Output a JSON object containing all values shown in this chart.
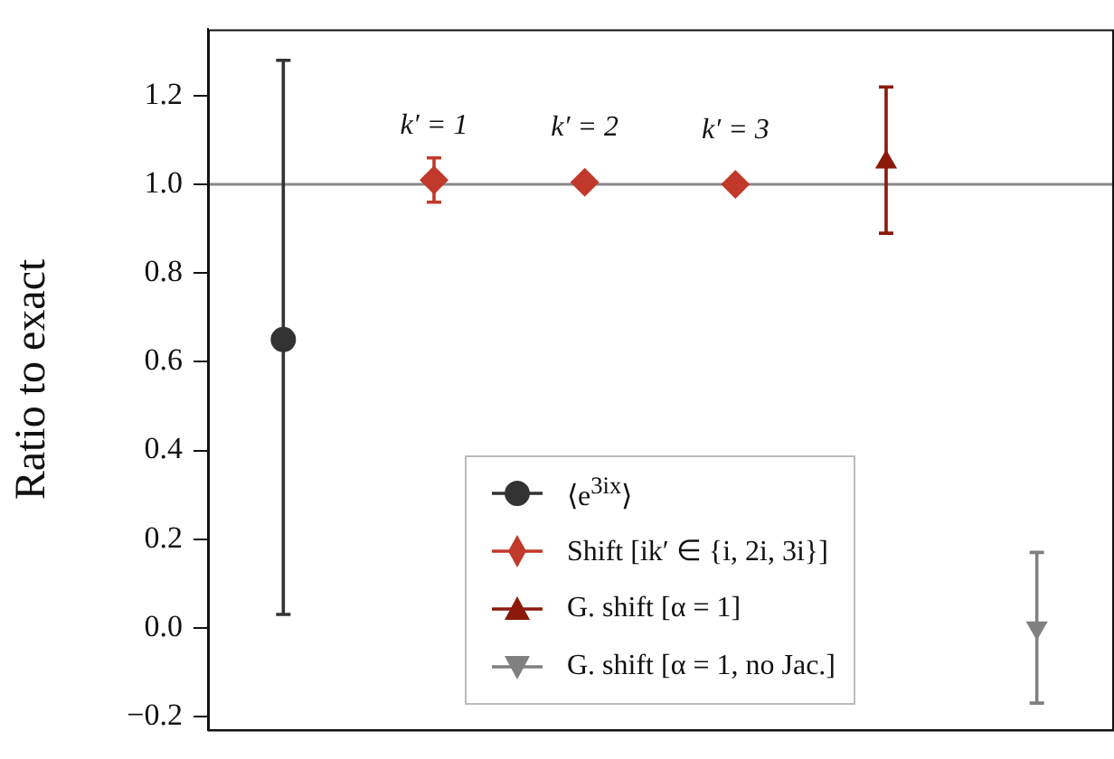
{
  "chart_data": {
    "type": "scatter",
    "ylabel": "Ratio to exact",
    "categories": [
      null,
      null,
      null,
      null,
      null,
      null
    ],
    "ylim": [
      -0.23,
      1.35
    ],
    "yticks": [
      {
        "value": -0.2,
        "label": "−0.2"
      },
      {
        "value": 0,
        "label": "0.0"
      },
      {
        "value": 0.2,
        "label": "0.2"
      },
      {
        "value": 0.4,
        "label": "0.4"
      },
      {
        "value": 0.6,
        "label": "0.6"
      },
      {
        "value": 0.8,
        "label": "0.8"
      },
      {
        "value": 1,
        "label": "1.0"
      },
      {
        "value": 1.2,
        "label": "1.2"
      }
    ],
    "tick_labels": "y",
    "legend": "bottom",
    "ref_lines": [
      {
        "axis": "y",
        "value": 1,
        "color": "#888888"
      }
    ],
    "annotations": [
      "k′ = 1",
      "k′ = 2",
      "k′ = 3"
    ],
    "series": [
      {
        "name": "⟨e$^{3ix}$⟩",
        "color": "#333333",
        "marker": "circle",
        "values": [
          0.65,
          null,
          null,
          null,
          null,
          null
        ],
        "errors": [
          [
            0.03,
            1.28
          ],
          null,
          null,
          null,
          null,
          null
        ]
      },
      {
        "name": "Shift [ik′ ∈ {i, 2i, 3i}]",
        "color": "#c0392b",
        "marker": "diamond",
        "values": [
          null,
          1.01,
          1.005,
          1.0,
          null,
          null
        ],
        "errors": [
          null,
          [
            0.96,
            1.06
          ],
          null,
          null,
          null,
          null
        ]
      },
      {
        "name": "G. shift [α = 1]",
        "color": "#8b1a0a",
        "marker": "triangle",
        "values": [
          null,
          null,
          null,
          null,
          1.05,
          null
        ],
        "errors": [
          null,
          null,
          null,
          null,
          [
            0.89,
            1.22
          ],
          null
        ]
      },
      {
        "name": "G. shift [α = 1, no Jac.]",
        "color": "#808080",
        "marker": "triangle_down",
        "values": [
          null,
          null,
          null,
          null,
          null,
          0.0
        ],
        "errors": [
          null,
          null,
          null,
          null,
          null,
          [
            -0.17,
            0.17
          ]
        ]
      }
    ]
  }
}
